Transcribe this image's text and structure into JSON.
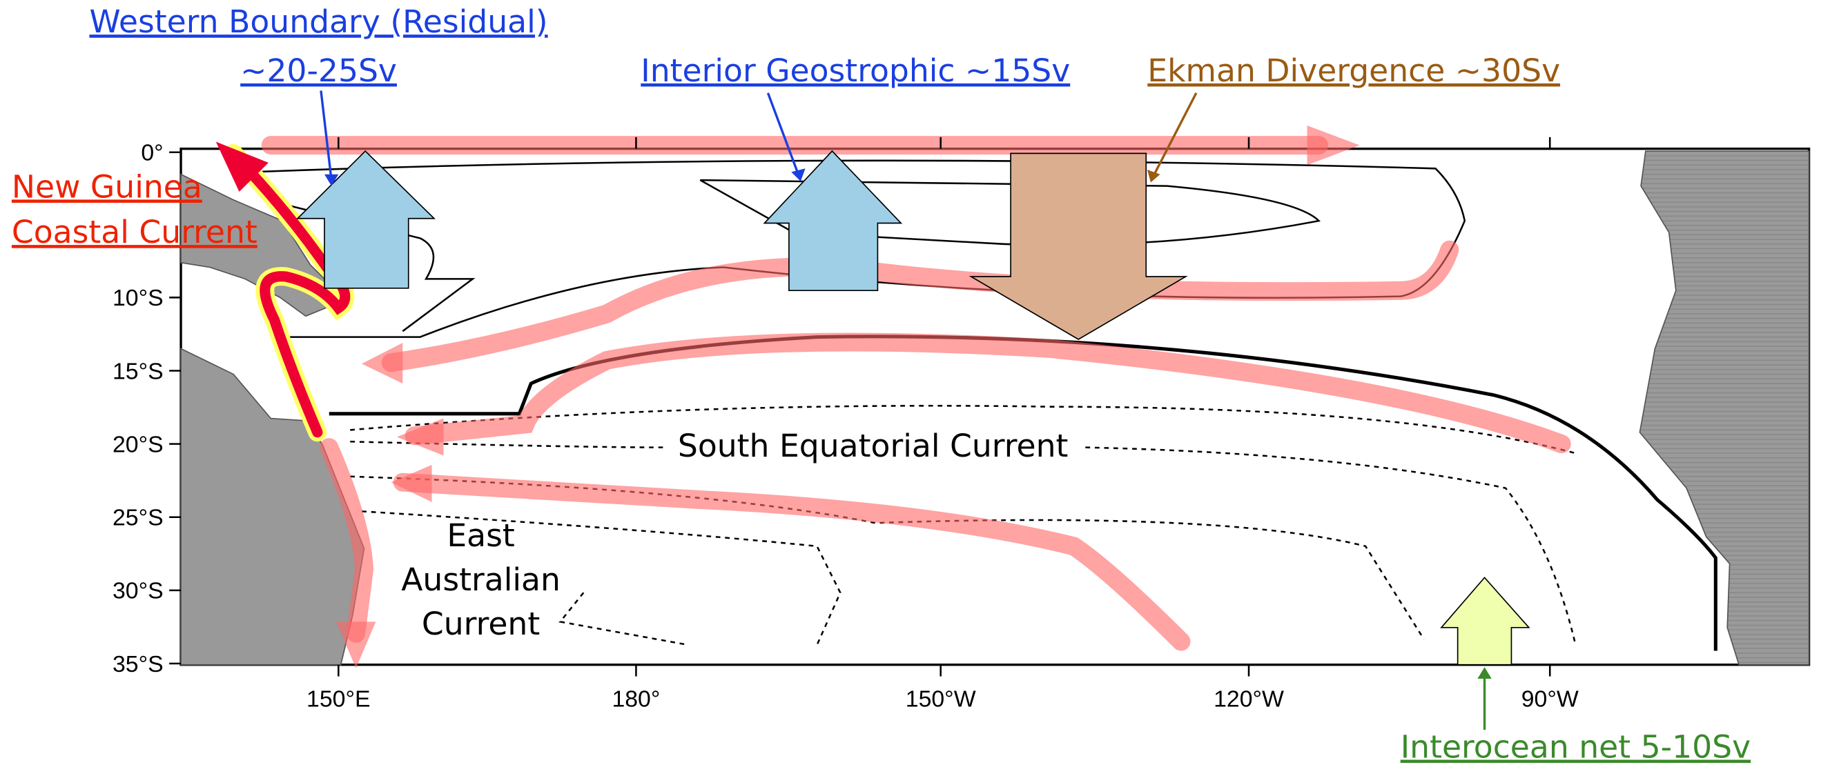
{
  "annotations": {
    "western_boundary_line1": "Western Boundary (Residual)",
    "western_boundary_line2": "~20-25Sv",
    "interior_geostrophic": "Interior Geostrophic ~15Sv",
    "ekman_divergence": "Ekman Divergence ~30Sv",
    "new_guinea_line1": "New Guinea",
    "new_guinea_line2": "Coastal Current",
    "interocean": "Interocean net 5-10Sv"
  },
  "map_labels": {
    "south_equatorial_current": "South Equatorial Current",
    "east_australian_line1": "East",
    "east_australian_line2": "Australian",
    "east_australian_line3": "Current"
  },
  "lat_labels": [
    "0°",
    "10°S",
    "15°S",
    "20°S",
    "25°S",
    "30°S",
    "35°S"
  ],
  "lon_labels": [
    "150°E",
    "180°",
    "150°W",
    "120°W",
    "90°W"
  ]
}
